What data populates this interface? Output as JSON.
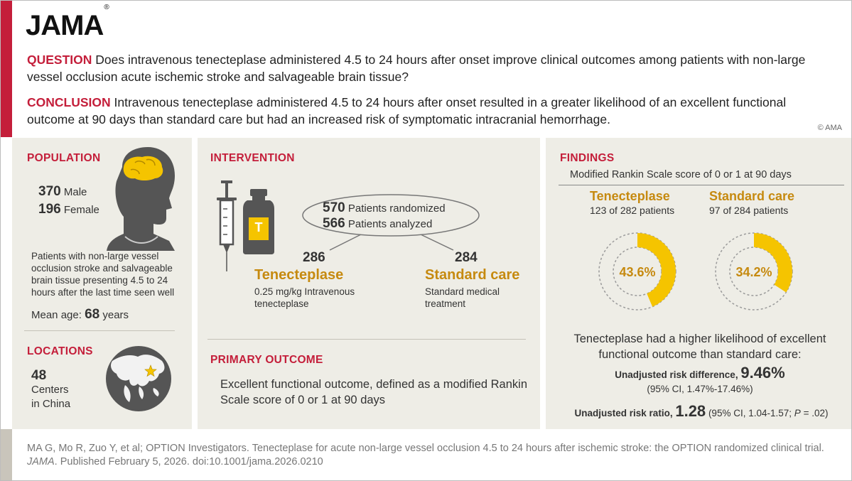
{
  "brand": {
    "logo": "JAMA",
    "reg": "®"
  },
  "question": {
    "label": "QUESTION",
    "text": "Does intravenous tenecteplase administered 4.5 to 24 hours after onset improve clinical outcomes among patients with non-large vessel occlusion acute ischemic stroke and salvageable brain tissue?"
  },
  "conclusion": {
    "label": "CONCLUSION",
    "text": "Intravenous tenecteplase administered 4.5 to 24 hours after onset resulted in a greater likelihood of an excellent functional outcome at 90 days than standard care but had an increased risk of symptomatic intracranial hemorrhage."
  },
  "copyright": "© AMA",
  "population": {
    "title": "POPULATION",
    "male_n": "370",
    "male_label": "Male",
    "female_n": "196",
    "female_label": "Female",
    "description": "Patients with non-large vessel occlusion stroke and salvageable brain tissue presenting 4.5 to 24 hours after the last time seen well",
    "mean_age_label": "Mean age:",
    "mean_age_value": "68",
    "mean_age_unit": "years"
  },
  "locations": {
    "title": "LOCATIONS",
    "count": "48",
    "line1": "Centers",
    "line2": "in China"
  },
  "intervention": {
    "title": "INTERVENTION",
    "vial_letter": "T",
    "randomized_n": "570",
    "randomized_label": "Patients randomized",
    "analyzed_n": "566",
    "analyzed_label": "Patients analyzed",
    "arm1": {
      "n": "286",
      "name": "Tenecteplase",
      "desc": "0.25 mg/kg Intravenous tenecteplase"
    },
    "arm2": {
      "n": "284",
      "name": "Standard care",
      "desc": "Standard medical treatment"
    }
  },
  "primary_outcome": {
    "title": "PRIMARY OUTCOME",
    "text": "Excellent functional outcome, defined as a modified Rankin Scale score of 0 or 1 at 90 days"
  },
  "findings": {
    "title": "FINDINGS",
    "subtitle": "Modified Rankin Scale score of 0 or 1 at 90 days",
    "groups": [
      {
        "name": "Tenecteplase",
        "counts": "123 of 282 patients",
        "percent_label": "43.6%",
        "percent": 43.6
      },
      {
        "name": "Standard care",
        "counts": "97 of 284 patients",
        "percent_label": "34.2%",
        "percent": 34.2
      }
    ],
    "summary": "Tenecteplase had a higher likelihood of excellent functional outcome than standard care:",
    "risk_diff_label": "Unadjusted risk difference,",
    "risk_diff_value": "9.46%",
    "risk_diff_ci": "(95% CI, 1.47%-17.46%)",
    "risk_ratio_label": "Unadjusted risk ratio,",
    "risk_ratio_value": "1.28",
    "risk_ratio_ci_pre": "(95% CI, 1.04-1.57;",
    "risk_ratio_p_italic": "P",
    "risk_ratio_ci_post": "= .02)"
  },
  "citation": {
    "part1": "MA G, Mo R, Zuo Y, et al; OPTION Investigators. Tenecteplase for acute non-large vessel occlusion 4.5 to 24 hours after ischemic stroke: the OPTION randomized clinical trial.",
    "journal": "JAMA",
    "part2": ". Published February 5, 2026. doi:10.1001/jama.2026.0210"
  },
  "colors": {
    "accent_red": "#c41e3a",
    "donut_yellow": "#f5c400",
    "label_gold": "#c68a10",
    "panel_bg": "#eeede6"
  },
  "icons": [
    "head-brain-icon",
    "globe-china-icon",
    "syringe-icon",
    "vial-icon"
  ]
}
